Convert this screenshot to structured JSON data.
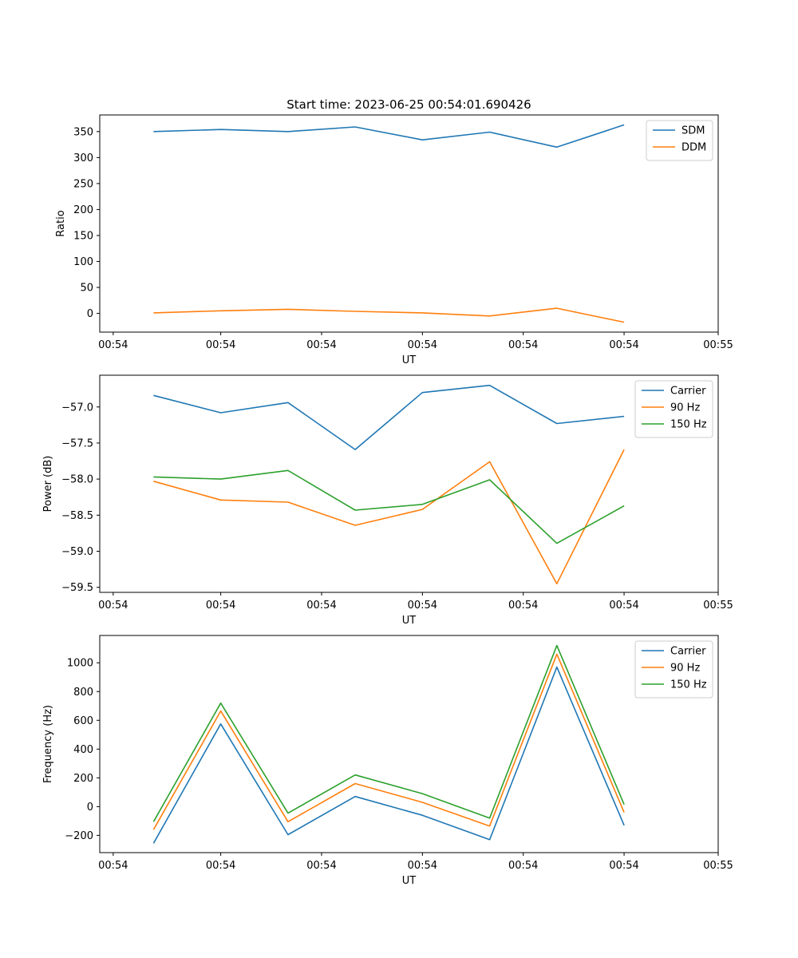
{
  "chart_data": [
    {
      "type": "line",
      "title": "Start time: 2023-06-25 00:54:01.690426",
      "xlabel": "UT",
      "ylabel": "Ratio",
      "x": [
        1,
        2,
        3,
        4,
        5,
        6,
        7,
        8
      ],
      "xlim": [
        0.2,
        9.4
      ],
      "x_ticks": [
        0.4,
        2.0,
        3.5,
        5.0,
        6.5,
        8.0,
        9.4
      ],
      "x_tick_labels": [
        "00:54",
        "00:54",
        "00:54",
        "00:54",
        "00:54",
        "00:54",
        "00:55"
      ],
      "ylim": [
        -36,
        382
      ],
      "y_ticks": [
        0,
        50,
        100,
        150,
        200,
        250,
        300,
        350
      ],
      "legend_position": "top-right",
      "grid": false,
      "series": [
        {
          "name": "SDM",
          "color": "#1f77b4",
          "values": [
            350,
            354,
            350,
            359,
            334,
            349,
            320,
            363
          ]
        },
        {
          "name": "DDM",
          "color": "#ff7f0e",
          "values": [
            1,
            5,
            8,
            4,
            1,
            -5,
            10,
            -17
          ]
        }
      ]
    },
    {
      "type": "line",
      "title": "",
      "xlabel": "UT",
      "ylabel": "Power (dB)",
      "x": [
        1,
        2,
        3,
        4,
        5,
        6,
        7,
        8
      ],
      "xlim": [
        0.2,
        9.4
      ],
      "x_ticks": [
        0.4,
        2.0,
        3.5,
        5.0,
        6.5,
        8.0,
        9.4
      ],
      "x_tick_labels": [
        "00:54",
        "00:54",
        "00:54",
        "00:54",
        "00:54",
        "00:54",
        "00:55"
      ],
      "ylim": [
        -59.57,
        -56.56
      ],
      "y_ticks": [
        -59.5,
        -59.0,
        -58.5,
        -58.0,
        -57.5,
        -57.0
      ],
      "y_tick_labels": [
        "−59.5",
        "−59.0",
        "−58.5",
        "−58.0",
        "−57.5",
        "−57.0"
      ],
      "legend_position": "top-right",
      "grid": false,
      "series": [
        {
          "name": "Carrier",
          "color": "#1f77b4",
          "values": [
            -56.84,
            -57.08,
            -56.94,
            -57.59,
            -56.8,
            -56.7,
            -57.23,
            -57.13
          ]
        },
        {
          "name": "90 Hz",
          "color": "#ff7f0e",
          "values": [
            -58.03,
            -58.29,
            -58.32,
            -58.64,
            -58.42,
            -57.76,
            -59.45,
            -57.59
          ]
        },
        {
          "name": "150 Hz",
          "color": "#2ca02c",
          "values": [
            -57.97,
            -58.0,
            -57.88,
            -58.43,
            -58.35,
            -58.01,
            -58.89,
            -58.37
          ]
        }
      ]
    },
    {
      "type": "line",
      "title": "",
      "xlabel": "UT",
      "ylabel": "Frequency (Hz)",
      "x": [
        1,
        2,
        3,
        4,
        5,
        6,
        7,
        8
      ],
      "xlim": [
        0.2,
        9.4
      ],
      "x_ticks": [
        0.4,
        2.0,
        3.5,
        5.0,
        6.5,
        8.0,
        9.4
      ],
      "x_tick_labels": [
        "00:54",
        "00:54",
        "00:54",
        "00:54",
        "00:54",
        "00:54",
        "00:55"
      ],
      "ylim": [
        -320,
        1190
      ],
      "y_ticks": [
        -200,
        0,
        200,
        400,
        600,
        800,
        1000
      ],
      "y_tick_labels": [
        "−200",
        "0",
        "200",
        "400",
        "600",
        "800",
        "1000"
      ],
      "legend_position": "top-right",
      "grid": false,
      "series": [
        {
          "name": "Carrier",
          "color": "#1f77b4",
          "values": [
            -255,
            575,
            -195,
            70,
            -60,
            -230,
            970,
            -130
          ]
        },
        {
          "name": "90 Hz",
          "color": "#ff7f0e",
          "values": [
            -160,
            665,
            -105,
            160,
            30,
            -135,
            1060,
            -40
          ]
        },
        {
          "name": "150 Hz",
          "color": "#2ca02c",
          "values": [
            -105,
            720,
            -45,
            220,
            90,
            -80,
            1120,
            15
          ]
        }
      ]
    }
  ]
}
